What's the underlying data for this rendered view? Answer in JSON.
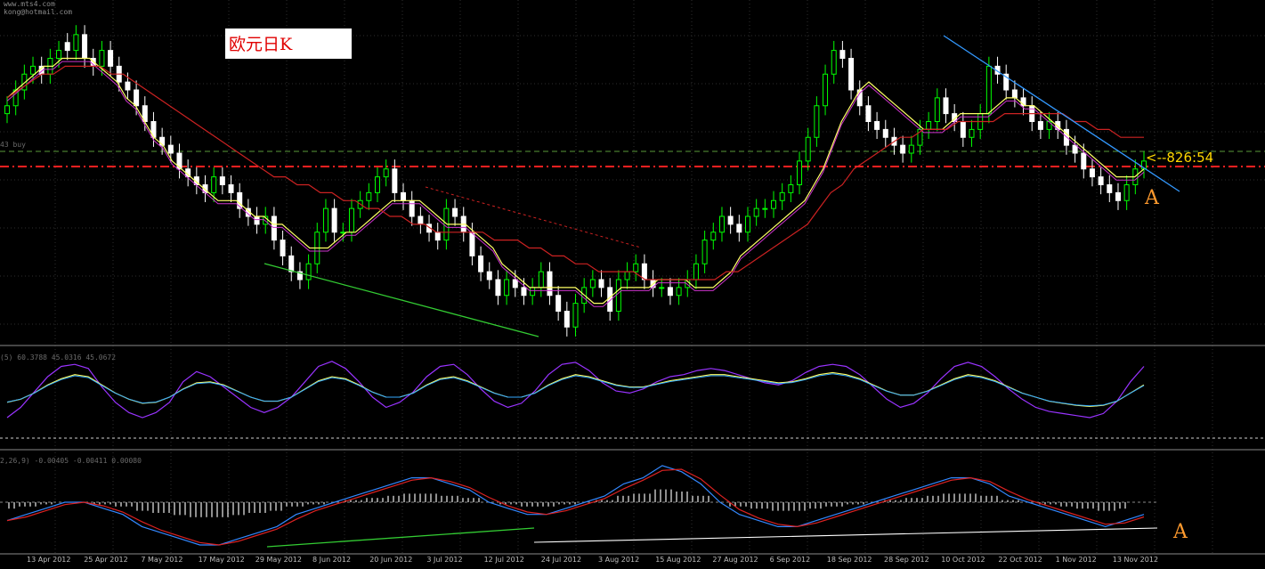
{
  "window": {
    "title": "欧元日K"
  },
  "header_lines": [
    "www.mts4.com",
    "kong@hotmail.com"
  ],
  "panel_labels": {
    "main_line": "43 buy",
    "oscillator": "(5) 60.3788 45.0316 45.0672",
    "macd": "2,26,9) -0.00405 -0.00411 0.00080"
  },
  "price_marker": {
    "text": "<--826:54"
  },
  "marks": {
    "main": "A",
    "macd": "A"
  },
  "colors": {
    "bull": "#00ff00",
    "bear": "#ffffff",
    "ma_fast": "#ffff66",
    "ma_slow": "#cc2222",
    "guide_green": "#33cc33",
    "guide_red": "#ff2020"
  },
  "chart_data": [
    {
      "type": "candlestick",
      "title": "欧元日K",
      "x_tick_labels": [
        "13 Apr 2012",
        "25 Apr 2012",
        "7 May 2012",
        "17 May 2012",
        "29 May 2012",
        "8 Jun 2012",
        "20 Jun 2012",
        "3 Jul 2012",
        "12 Jul 2012",
        "24 Jul 2012",
        "3 Aug 2012",
        "15 Aug 2012",
        "27 Aug 2012",
        "6 Sep 2012",
        "18 Sep 2012",
        "28 Sep 2012",
        "10 Oct 2012",
        "22 Oct 2012",
        "1 Nov 2012",
        "13 Nov 2012"
      ],
      "close": [
        1.08,
        1.1,
        1.12,
        1.13,
        1.12,
        1.14,
        1.15,
        1.15,
        1.17,
        1.14,
        1.13,
        1.15,
        1.13,
        1.11,
        1.1,
        1.08,
        1.06,
        1.04,
        1.03,
        1.02,
        1.0,
        0.99,
        0.98,
        0.97,
        0.99,
        0.98,
        0.97,
        0.95,
        0.94,
        0.93,
        0.94,
        0.91,
        0.89,
        0.87,
        0.86,
        0.88,
        0.92,
        0.95,
        0.92,
        0.92,
        0.95,
        0.96,
        0.97,
        0.99,
        1.0,
        0.97,
        0.96,
        0.94,
        0.93,
        0.92,
        0.91,
        0.95,
        0.94,
        0.92,
        0.89,
        0.87,
        0.86,
        0.84,
        0.86,
        0.85,
        0.84,
        0.85,
        0.87,
        0.84,
        0.82,
        0.8,
        0.83,
        0.85,
        0.86,
        0.85,
        0.82,
        0.86,
        0.87,
        0.88,
        0.86,
        0.85,
        0.85,
        0.84,
        0.85,
        0.86,
        0.88,
        0.91,
        0.92,
        0.94,
        0.93,
        0.92,
        0.94,
        0.95,
        0.95,
        0.96,
        0.97,
        0.98,
        1.01,
        1.04,
        1.08,
        1.12,
        1.15,
        1.14,
        1.1,
        1.08,
        1.06,
        1.05,
        1.04,
        1.03,
        1.02,
        1.03,
        1.05,
        1.06,
        1.09,
        1.07,
        1.06,
        1.04,
        1.05,
        1.07,
        1.13,
        1.12,
        1.1,
        1.09,
        1.08,
        1.06,
        1.05,
        1.06,
        1.05,
        1.03,
        1.02,
        1.0,
        0.99,
        0.98,
        0.97,
        0.96,
        0.98,
        1.0,
        1.01
      ],
      "open": [
        1.07,
        1.08,
        1.1,
        1.12,
        1.13,
        1.12,
        1.14,
        1.16,
        1.15,
        1.17,
        1.14,
        1.13,
        1.15,
        1.13,
        1.11,
        1.1,
        1.08,
        1.06,
        1.04,
        1.03,
        1.02,
        1.0,
        0.99,
        0.98,
        0.97,
        0.99,
        0.98,
        0.97,
        0.95,
        0.94,
        0.93,
        0.94,
        0.91,
        0.89,
        0.87,
        0.86,
        0.88,
        0.92,
        0.95,
        0.92,
        0.92,
        0.95,
        0.96,
        0.97,
        0.99,
        1.0,
        0.97,
        0.96,
        0.94,
        0.93,
        0.92,
        0.91,
        0.95,
        0.94,
        0.92,
        0.89,
        0.87,
        0.86,
        0.84,
        0.86,
        0.85,
        0.84,
        0.85,
        0.87,
        0.84,
        0.82,
        0.8,
        0.83,
        0.85,
        0.86,
        0.85,
        0.82,
        0.86,
        0.87,
        0.88,
        0.86,
        0.85,
        0.85,
        0.84,
        0.85,
        0.86,
        0.88,
        0.91,
        0.92,
        0.94,
        0.93,
        0.92,
        0.94,
        0.95,
        0.95,
        0.96,
        0.97,
        0.98,
        1.01,
        1.04,
        1.08,
        1.12,
        1.15,
        1.14,
        1.1,
        1.08,
        1.06,
        1.05,
        1.04,
        1.03,
        1.02,
        1.03,
        1.05,
        1.06,
        1.09,
        1.07,
        1.06,
        1.04,
        1.05,
        1.07,
        1.13,
        1.12,
        1.1,
        1.09,
        1.08,
        1.06,
        1.05,
        1.06,
        1.05,
        1.03,
        1.02,
        1.0,
        0.99,
        0.98,
        0.97,
        0.96,
        0.98,
        1.0
      ],
      "series": [
        {
          "values": [
            1.09,
            1.1,
            1.11,
            1.12,
            1.13,
            1.13,
            1.14,
            1.14,
            1.14,
            1.14,
            1.13,
            1.12,
            1.11,
            1.09,
            1.08,
            1.06,
            1.04,
            1.03,
            1.01,
            1.0,
            0.99,
            0.98,
            0.97,
            0.96,
            0.96,
            0.96,
            0.95,
            0.94,
            0.94,
            0.93,
            0.93,
            0.92,
            0.91,
            0.9,
            0.9,
            0.9,
            0.91,
            0.92,
            0.92,
            0.93,
            0.94,
            0.95,
            0.96,
            0.96,
            0.96,
            0.96,
            0.95,
            0.94,
            0.93,
            0.93,
            0.93,
            0.92,
            0.91,
            0.9,
            0.88,
            0.87,
            0.86,
            0.85,
            0.85,
            0.85,
            0.85,
            0.85,
            0.85,
            0.84,
            0.83,
            0.83,
            0.84,
            0.85,
            0.85,
            0.85,
            0.85,
            0.86,
            0.86,
            0.86,
            0.86,
            0.85,
            0.85,
            0.85,
            0.86,
            0.87,
            0.89,
            0.9,
            0.91,
            0.92,
            0.93,
            0.94,
            0.95,
            0.96,
            0.98,
            1.0,
            1.03,
            1.06,
            1.08,
            1.1,
            1.11,
            1.1,
            1.09,
            1.08,
            1.07,
            1.06,
            1.05,
            1.05,
            1.05,
            1.06,
            1.07,
            1.07,
            1.07,
            1.07,
            1.08,
            1.09,
            1.09,
            1.08,
            1.08,
            1.07,
            1.06,
            1.05,
            1.04,
            1.03,
            1.02,
            1.01,
            1.0,
            0.99,
            0.99,
            0.99,
            1.0
          ]
        },
        {
          "values": [
            1.09,
            1.1,
            1.11,
            1.12,
            1.12,
            1.13,
            1.13,
            1.13,
            1.13,
            1.12,
            1.12,
            1.11,
            1.1,
            1.09,
            1.08,
            1.07,
            1.06,
            1.05,
            1.04,
            1.03,
            1.02,
            1.01,
            1.0,
            0.99,
            0.99,
            0.98,
            0.98,
            0.97,
            0.97,
            0.96,
            0.96,
            0.95,
            0.95,
            0.94,
            0.94,
            0.93,
            0.93,
            0.92,
            0.92,
            0.92,
            0.92,
            0.92,
            0.91,
            0.91,
            0.91,
            0.9,
            0.9,
            0.89,
            0.89,
            0.88,
            0.88,
            0.87,
            0.87,
            0.87,
            0.87,
            0.86,
            0.86,
            0.86,
            0.86,
            0.86,
            0.86,
            0.86,
            0.87,
            0.87,
            0.88,
            0.89,
            0.9,
            0.91,
            0.92,
            0.93,
            0.95,
            0.97,
            0.98,
            1.0,
            1.01,
            1.02,
            1.03,
            1.04,
            1.04,
            1.05,
            1.05,
            1.05,
            1.06,
            1.06,
            1.06,
            1.06,
            1.07,
            1.07,
            1.07,
            1.07,
            1.07,
            1.07,
            1.06,
            1.06,
            1.05,
            1.05,
            1.04,
            1.04,
            1.04
          ]
        }
      ],
      "markers": {
        "price_line": 826.54
      }
    },
    {
      "type": "line",
      "series": [
        {
          "values": [
            20,
            30,
            45,
            60,
            70,
            72,
            68,
            50,
            35,
            25,
            20,
            25,
            35,
            55,
            65,
            60,
            50,
            40,
            30,
            25,
            30,
            40,
            55,
            70,
            75,
            68,
            55,
            40,
            30,
            35,
            45,
            60,
            70,
            72,
            62,
            48,
            36,
            30,
            34,
            46,
            62,
            72,
            74,
            66,
            54,
            46,
            44,
            48,
            55,
            60,
            62,
            66,
            68,
            66,
            62,
            58,
            54,
            52,
            56,
            64,
            70,
            72,
            70,
            62,
            50,
            38,
            30,
            34,
            44,
            58,
            70,
            74,
            70,
            60,
            48,
            38,
            30,
            26,
            24,
            22,
            20,
            24,
            36,
            55,
            70
          ]
        },
        {
          "values": [
            35,
            38,
            44,
            52,
            58,
            62,
            60,
            52,
            44,
            38,
            34,
            35,
            40,
            48,
            54,
            55,
            52,
            46,
            40,
            36,
            36,
            40,
            48,
            56,
            60,
            58,
            52,
            45,
            40,
            40,
            44,
            52,
            58,
            60,
            56,
            50,
            44,
            40,
            40,
            44,
            52,
            58,
            62,
            60,
            56,
            52,
            50,
            50,
            53,
            56,
            58,
            60,
            62,
            62,
            60,
            58,
            56,
            54,
            55,
            58,
            62,
            64,
            62,
            58,
            52,
            46,
            42,
            42,
            46,
            52,
            58,
            62,
            60,
            56,
            50,
            44,
            40,
            36,
            34,
            32,
            31,
            32,
            36,
            44,
            52
          ]
        }
      ]
    },
    {
      "type": "bar",
      "series": [
        {
          "name": "macd",
          "values": [
            -0.003,
            -0.002,
            -0.001,
            0.0,
            0.0,
            -0.001,
            -0.002,
            -0.004,
            -0.005,
            -0.006,
            -0.007,
            -0.007,
            -0.006,
            -0.005,
            -0.004,
            -0.002,
            -0.001,
            0.0,
            0.001,
            0.002,
            0.003,
            0.004,
            0.004,
            0.003,
            0.002,
            0.0,
            -0.001,
            -0.002,
            -0.002,
            -0.001,
            0.0,
            0.001,
            0.003,
            0.004,
            0.006,
            0.005,
            0.003,
            0.0,
            -0.002,
            -0.003,
            -0.004,
            -0.004,
            -0.003,
            -0.002,
            -0.001,
            0.0,
            0.001,
            0.002,
            0.003,
            0.004,
            0.004,
            0.003,
            0.001,
            0.0,
            -0.001,
            -0.002,
            -0.003,
            -0.004,
            -0.003,
            -0.002
          ]
        }
      ]
    }
  ]
}
